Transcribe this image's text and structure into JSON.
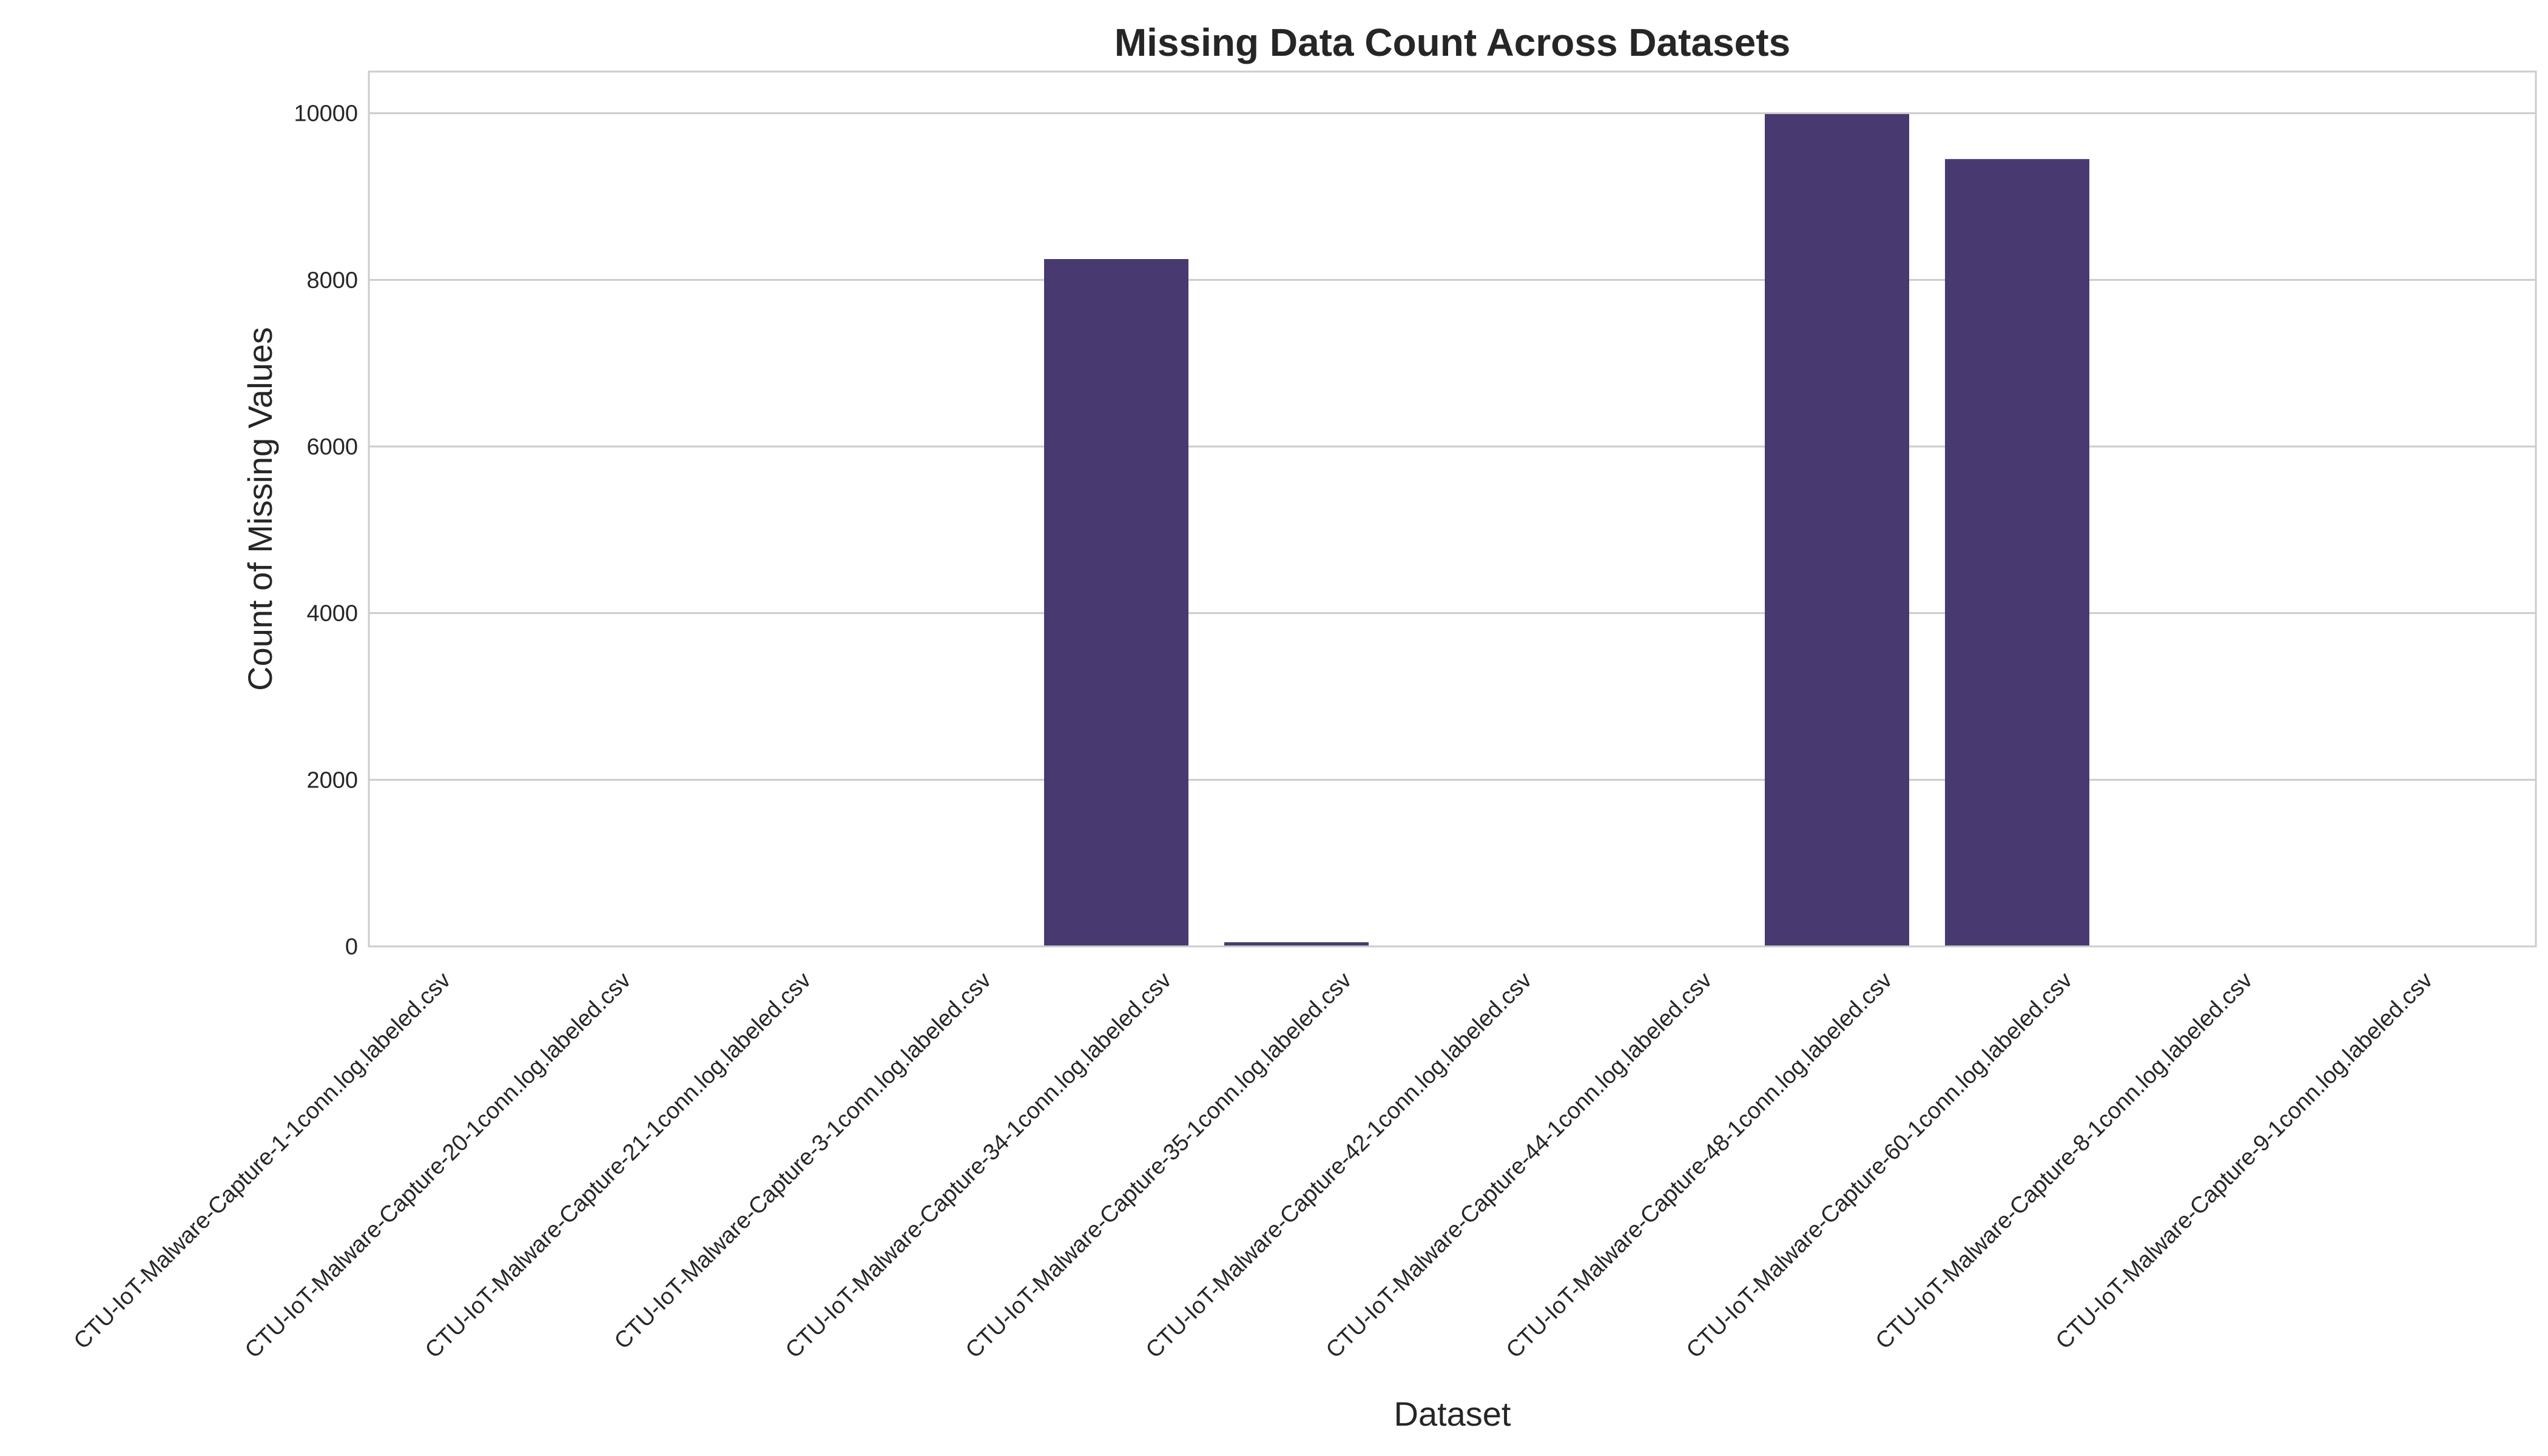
{
  "chart_data": {
    "type": "bar",
    "title": "Missing Data Count Across Datasets",
    "xlabel": "Dataset",
    "ylabel": "Count of Missing Values",
    "categories": [
      "CTU-IoT-Malware-Capture-1-1conn.log.labeled.csv",
      "CTU-IoT-Malware-Capture-20-1conn.log.labeled.csv",
      "CTU-IoT-Malware-Capture-21-1conn.log.labeled.csv",
      "CTU-IoT-Malware-Capture-3-1conn.log.labeled.csv",
      "CTU-IoT-Malware-Capture-34-1conn.log.labeled.csv",
      "CTU-IoT-Malware-Capture-35-1conn.log.labeled.csv",
      "CTU-IoT-Malware-Capture-42-1conn.log.labeled.csv",
      "CTU-IoT-Malware-Capture-44-1conn.log.labeled.csv",
      "CTU-IoT-Malware-Capture-48-1conn.log.labeled.csv",
      "CTU-IoT-Malware-Capture-60-1conn.log.labeled.csv",
      "CTU-IoT-Malware-Capture-8-1conn.log.labeled.csv",
      "CTU-IoT-Malware-Capture-9-1conn.log.labeled.csv"
    ],
    "values": [
      0,
      0,
      0,
      0,
      8250,
      50,
      0,
      0,
      9990,
      9450,
      0,
      0
    ],
    "ylim": [
      0,
      10500
    ],
    "yticks": [
      0,
      2000,
      4000,
      6000,
      8000,
      10000
    ],
    "grid": "horizontal",
    "bar_color": "#483a70"
  }
}
